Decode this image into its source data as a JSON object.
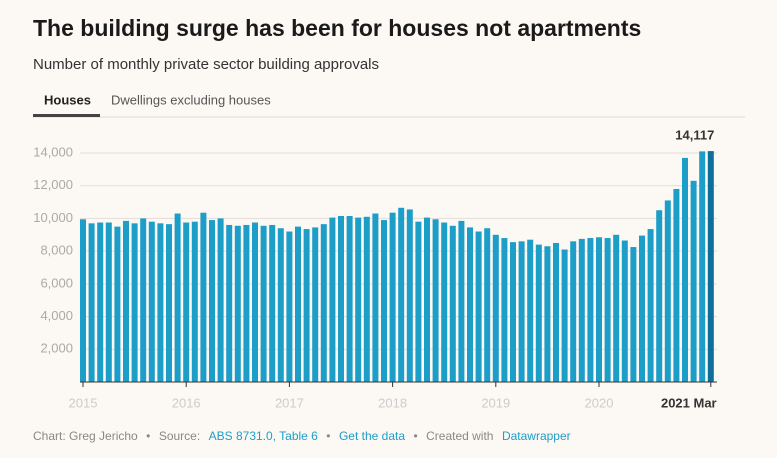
{
  "chart_data": {
    "type": "bar",
    "title": "The building surge has been for houses not apartments",
    "subtitle": "Number of monthly private sector building approvals",
    "categories": [
      "2015",
      null,
      null,
      null,
      null,
      null,
      null,
      null,
      null,
      null,
      null,
      null,
      "2016",
      null,
      null,
      null,
      null,
      null,
      null,
      null,
      null,
      null,
      null,
      null,
      "2017",
      null,
      null,
      null,
      null,
      null,
      null,
      null,
      null,
      null,
      null,
      null,
      "2018",
      null,
      null,
      null,
      null,
      null,
      null,
      null,
      null,
      null,
      null,
      null,
      "2019",
      null,
      null,
      null,
      null,
      null,
      null,
      null,
      null,
      null,
      null,
      null,
      "2020",
      null,
      null,
      null,
      null,
      null,
      null,
      null,
      null,
      null,
      null,
      null,
      null,
      "2021 Mar"
    ],
    "values": [
      9950,
      9700,
      9750,
      9750,
      9500,
      9850,
      9700,
      10000,
      9800,
      9700,
      9650,
      10300,
      9750,
      9800,
      10350,
      9900,
      10000,
      9600,
      9550,
      9600,
      9750,
      9550,
      9600,
      9400,
      9200,
      9500,
      9350,
      9450,
      9650,
      10050,
      10150,
      10150,
      10050,
      10100,
      10300,
      9900,
      10350,
      10650,
      10550,
      9800,
      10050,
      9950,
      9750,
      9550,
      9850,
      9450,
      9200,
      9400,
      9000,
      8800,
      8550,
      8600,
      8700,
      8400,
      8300,
      8500,
      8100,
      8600,
      8750,
      8800,
      8850,
      8800,
      9000,
      8650,
      8250,
      8950,
      9350,
      10500,
      11100,
      11800,
      13700,
      12300,
      14100,
      14117
    ],
    "value_labels": [
      null,
      null,
      null,
      null,
      null,
      null,
      null,
      null,
      null,
      null,
      null,
      null,
      null,
      null,
      null,
      null,
      null,
      null,
      null,
      null,
      null,
      null,
      null,
      null,
      null,
      null,
      null,
      null,
      null,
      null,
      null,
      null,
      null,
      null,
      null,
      null,
      null,
      null,
      null,
      null,
      null,
      null,
      null,
      null,
      null,
      null,
      null,
      null,
      null,
      null,
      null,
      null,
      null,
      null,
      null,
      null,
      null,
      null,
      null,
      null,
      null,
      null,
      null,
      null,
      null,
      null,
      null,
      null,
      null,
      null,
      null,
      null,
      null,
      "14,117"
    ],
    "color": "#1d9ec8",
    "highlight_color": "#0f6f9c",
    "ylim": [
      0,
      14000
    ],
    "yticks": [
      {
        "value": 2000,
        "label": "2,000"
      },
      {
        "value": 4000,
        "label": "4,000"
      },
      {
        "value": 6000,
        "label": "6,000"
      },
      {
        "value": 8000,
        "label": "8,000"
      },
      {
        "value": 10000,
        "label": "10,000"
      },
      {
        "value": 12000,
        "label": "12,000"
      },
      {
        "value": 14000,
        "label": "14,000"
      }
    ],
    "grid": true
  },
  "tabs": [
    "Houses",
    "Dwellings excluding houses"
  ],
  "footer": {
    "chart": "Chart: Greg Jericho",
    "separator": "•",
    "source_label": "Source:",
    "source_link": "ABS 8731.0, Table 6",
    "get_data": "Get the data",
    "created": "Created with",
    "tool": "Datawrapper"
  }
}
